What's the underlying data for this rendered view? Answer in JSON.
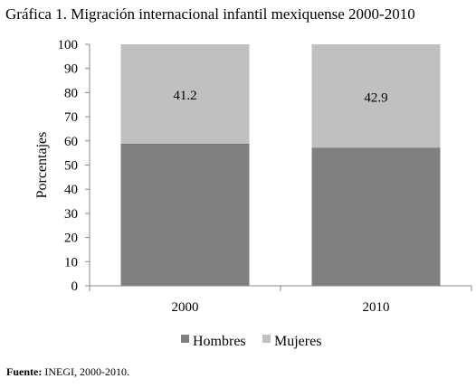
{
  "title": "Gráfica 1. Migración internacional infantil mexiquense 2000-2010",
  "source": {
    "label": "Fuente:",
    "text": "INEGI, 2000-2010."
  },
  "colors": {
    "hombres": "#7f807f",
    "mujeres": "#c0c0c0"
  },
  "chart_data": {
    "type": "bar",
    "stacked": true,
    "categories": [
      "2000",
      "2010"
    ],
    "series": [
      {
        "name": "Hombres",
        "values": [
          58.8,
          57.1
        ]
      },
      {
        "name": "Mujeres",
        "values": [
          41.2,
          42.9
        ]
      }
    ],
    "data_labels": [
      "41.2",
      "42.9"
    ],
    "ylabel": "Porcentajes",
    "xlabel": "",
    "ylim": [
      0,
      100
    ],
    "yticks": [
      0,
      10,
      20,
      30,
      40,
      50,
      60,
      70,
      80,
      90,
      100
    ],
    "legend": "bottom",
    "grid": false
  }
}
